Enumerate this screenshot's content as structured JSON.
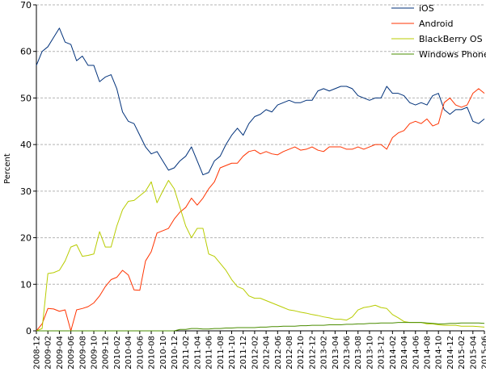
{
  "chart_data": {
    "type": "line",
    "ylabel": "Percent",
    "xlabel": "",
    "title": "",
    "ylim": [
      0,
      70
    ],
    "yticks": [
      0,
      10,
      20,
      30,
      40,
      50,
      60,
      70
    ],
    "grid": "horizontal dashed",
    "legend_position": "top-right",
    "x": [
      "2008-12",
      "2009-01",
      "2009-02",
      "2009-03",
      "2009-04",
      "2009-05",
      "2009-06",
      "2009-07",
      "2009-08",
      "2009-09",
      "2009-10",
      "2009-11",
      "2009-12",
      "2010-01",
      "2010-02",
      "2010-03",
      "2010-04",
      "2010-05",
      "2010-06",
      "2010-07",
      "2010-08",
      "2010-09",
      "2010-10",
      "2010-11",
      "2010-12",
      "2011-01",
      "2011-02",
      "2011-03",
      "2011-04",
      "2011-05",
      "2011-06",
      "2011-07",
      "2011-08",
      "2011-09",
      "2011-10",
      "2011-11",
      "2011-12",
      "2012-01",
      "2012-02",
      "2012-03",
      "2012-04",
      "2012-05",
      "2012-06",
      "2012-07",
      "2012-08",
      "2012-09",
      "2012-10",
      "2012-11",
      "2012-12",
      "2013-01",
      "2013-02",
      "2013-03",
      "2013-04",
      "2013-05",
      "2013-06",
      "2013-07",
      "2013-08",
      "2013-09",
      "2013-10",
      "2013-11",
      "2013-12",
      "2014-01",
      "2014-02",
      "2014-03",
      "2014-04",
      "2014-05",
      "2014-06",
      "2014-07",
      "2014-08",
      "2014-09",
      "2014-10",
      "2014-11",
      "2014-12",
      "2015-01",
      "2015-02",
      "2015-03",
      "2015-04",
      "2015-05",
      "2015-06"
    ],
    "xticks": [
      "2008-12",
      "2009-02",
      "2009-04",
      "2009-06",
      "2009-08",
      "2009-10",
      "2009-12",
      "2010-02",
      "2010-04",
      "2010-06",
      "2010-08",
      "2010-10",
      "2010-12",
      "2011-02",
      "2011-04",
      "2011-06",
      "2011-08",
      "2011-10",
      "2011-12",
      "2012-02",
      "2012-04",
      "2012-06",
      "2012-08",
      "2012-10",
      "2012-12",
      "2013-02",
      "2013-04",
      "2013-06",
      "2013-08",
      "2013-10",
      "2013-12",
      "2014-02",
      "2014-04",
      "2014-06",
      "2014-08",
      "2014-10",
      "2014-12",
      "2015-02",
      "2015-04",
      "2015-06"
    ],
    "series": [
      {
        "name": "iOS",
        "color": "#00317a",
        "values": [
          57.0,
          60.0,
          61.0,
          63.0,
          65.0,
          62.0,
          61.5,
          58.0,
          59.0,
          57.0,
          57.0,
          53.5,
          54.5,
          55.0,
          52.0,
          47.0,
          45.0,
          44.5,
          42.0,
          39.5,
          38.0,
          38.5,
          36.5,
          34.5,
          35.0,
          36.5,
          37.5,
          39.5,
          36.5,
          33.5,
          34.0,
          36.5,
          37.5,
          40.0,
          42.0,
          43.5,
          42.0,
          44.5,
          46.0,
          46.5,
          47.5,
          47.0,
          48.5,
          49.0,
          49.5,
          49.0,
          49.0,
          49.5,
          49.5,
          51.5,
          52.0,
          51.5,
          52.0,
          52.5,
          52.5,
          52.0,
          50.5,
          50.0,
          49.5,
          50.0,
          50.0,
          52.5,
          51.0,
          51.0,
          50.5,
          49.0,
          48.5,
          49.0,
          48.5,
          50.5,
          51.0,
          47.5,
          46.5,
          47.5,
          47.5,
          48.0,
          45.0,
          44.5,
          45.5
        ]
      },
      {
        "name": "Android",
        "color": "#ff3300",
        "values": [
          0.0,
          1.5,
          4.8,
          4.7,
          4.2,
          4.5,
          0.0,
          4.5,
          4.8,
          5.2,
          6.0,
          7.5,
          9.5,
          11.0,
          11.5,
          13.0,
          12.0,
          8.8,
          8.7,
          15.0,
          17.0,
          21.0,
          21.5,
          22.0,
          24.0,
          25.5,
          26.5,
          28.5,
          27.0,
          28.5,
          30.5,
          32.0,
          35.0,
          35.5,
          36.0,
          36.0,
          37.5,
          38.5,
          38.8,
          38.0,
          38.5,
          38.0,
          37.8,
          38.5,
          39.0,
          39.5,
          38.8,
          39.0,
          39.5,
          38.8,
          38.5,
          39.5,
          39.5,
          39.5,
          39.0,
          39.0,
          39.5,
          39.0,
          39.5,
          40.0,
          40.0,
          39.0,
          41.5,
          42.5,
          43.0,
          44.5,
          45.0,
          44.5,
          45.5,
          44.0,
          44.5,
          49.0,
          50.0,
          48.5,
          48.0,
          48.5,
          51.0,
          52.0,
          51.0
        ]
      },
      {
        "name": "BlackBerry OS",
        "color": "#b8cc00",
        "values": [
          0.0,
          0.5,
          12.3,
          12.5,
          13.0,
          15.0,
          18.0,
          18.5,
          16.0,
          16.2,
          16.5,
          21.3,
          18.0,
          18.0,
          22.5,
          26.0,
          27.8,
          28.0,
          29.0,
          30.0,
          32.0,
          27.5,
          30.0,
          32.3,
          30.5,
          26.5,
          22.5,
          20.0,
          22.0,
          22.0,
          16.5,
          16.0,
          14.5,
          13.0,
          11.0,
          9.5,
          9.0,
          7.5,
          7.0,
          7.0,
          6.5,
          6.0,
          5.5,
          5.0,
          4.5,
          4.3,
          4.0,
          3.8,
          3.5,
          3.3,
          3.0,
          2.8,
          2.5,
          2.5,
          2.3,
          3.0,
          4.5,
          5.0,
          5.2,
          5.5,
          5.0,
          4.8,
          3.5,
          2.8,
          2.0,
          1.8,
          1.8,
          1.8,
          1.5,
          1.5,
          1.3,
          1.2,
          1.2,
          1.2,
          1.0,
          1.0,
          1.0,
          0.9,
          0.8
        ]
      },
      {
        "name": "Windows Phone",
        "color": "#4a8c00",
        "values": [
          0,
          0,
          0,
          0,
          0,
          0,
          0,
          0,
          0,
          0,
          0,
          0,
          0,
          0,
          0,
          0,
          0,
          0,
          0,
          0,
          0,
          0,
          0,
          0,
          0,
          0.3,
          0.3,
          0.5,
          0.5,
          0.4,
          0.4,
          0.5,
          0.5,
          0.6,
          0.6,
          0.7,
          0.7,
          0.7,
          0.7,
          0.8,
          0.8,
          0.9,
          0.9,
          1.0,
          1.0,
          1.0,
          1.1,
          1.1,
          1.2,
          1.2,
          1.2,
          1.3,
          1.3,
          1.3,
          1.4,
          1.4,
          1.5,
          1.5,
          1.6,
          1.6,
          1.7,
          1.7,
          1.7,
          1.8,
          1.8,
          1.8,
          1.8,
          1.8,
          1.7,
          1.6,
          1.5,
          1.5,
          1.6,
          1.6,
          1.7,
          1.7,
          1.7,
          1.7,
          1.6
        ]
      }
    ]
  }
}
